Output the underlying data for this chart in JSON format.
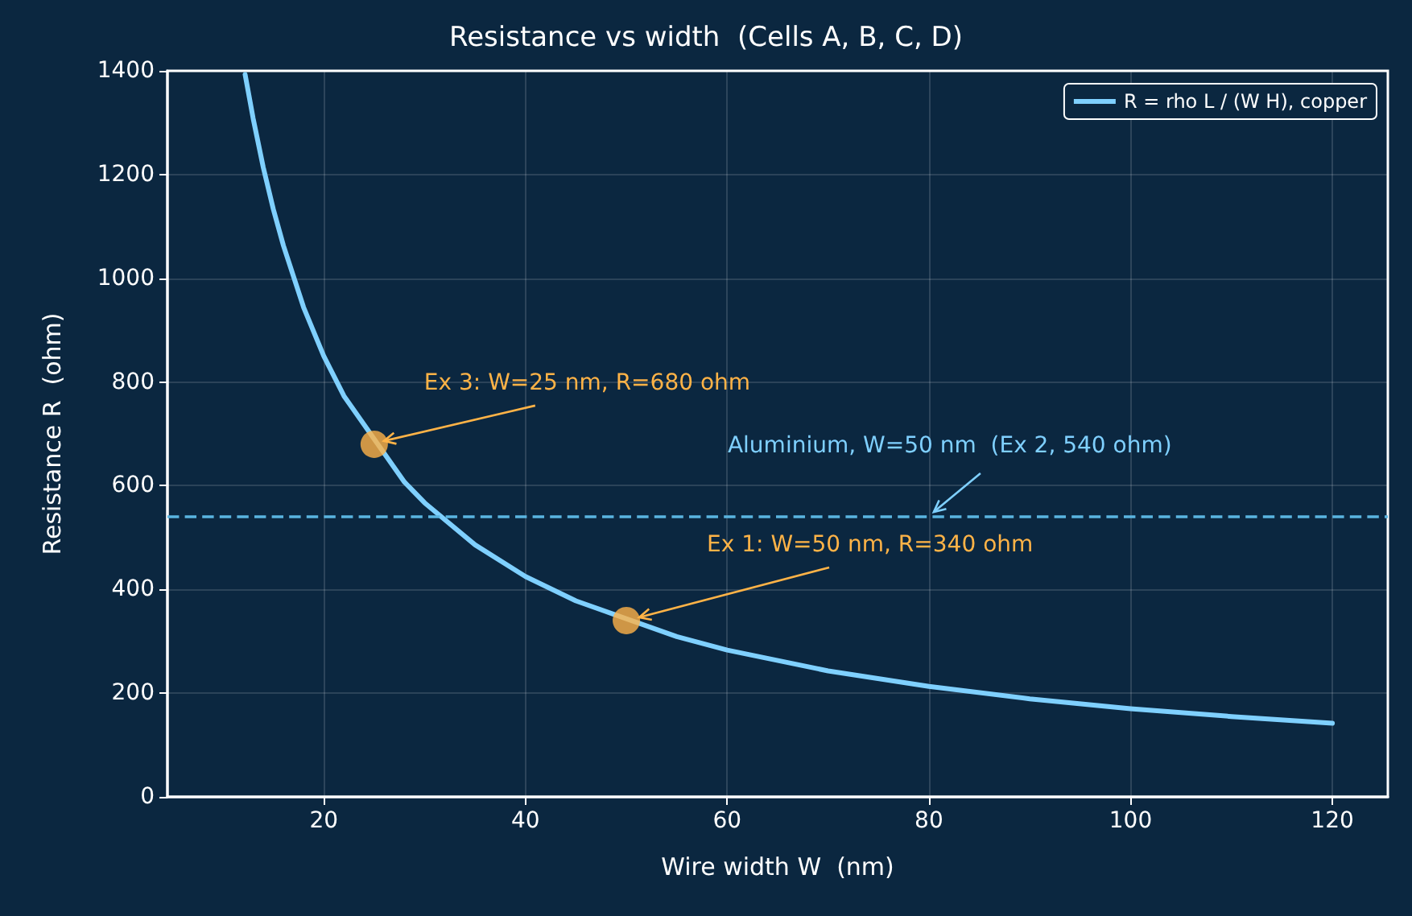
{
  "chart_data": {
    "type": "line",
    "title": "Resistance vs width  (Cells A, B, C, D)",
    "xlabel": "Wire width W  (nm)",
    "ylabel": "Resistance R  (ohm)",
    "series": [
      {
        "name": "R = rho L / (W H), copper",
        "color": "#7fd0ff",
        "x": [
          12.2,
          13,
          14,
          15,
          16,
          18,
          20,
          22,
          28,
          30,
          35,
          40,
          45,
          55,
          60,
          70,
          80,
          90,
          100,
          110,
          120
        ],
        "values": [
          1393,
          1308,
          1214,
          1133,
          1063,
          944,
          850,
          773,
          607,
          567,
          486,
          425,
          378,
          309,
          283,
          243,
          213,
          189,
          170,
          155,
          142
        ],
        "marker": "none"
      },
      {
        "type": "scatter",
        "color": "#ffb347",
        "x": [
          25,
          50
        ],
        "values": [
          680,
          340
        ],
        "marker": "circle"
      }
    ],
    "xlim": [
      4.5,
      125.5
    ],
    "xticks": [
      20,
      40,
      60,
      80,
      100,
      120
    ],
    "ylim": [
      0,
      1400
    ],
    "yticks": [
      0,
      200,
      400,
      600,
      800,
      1000,
      1200,
      1400
    ],
    "grid": true,
    "legend": "top right",
    "ref_lines": [
      {
        "axis": "y",
        "value": 540,
        "color": "#5ab4e0",
        "line_style": "dashed"
      }
    ],
    "annotations": [
      {
        "text": "Ex 3: W=25 nm, R=680 ohm",
        "x": 25,
        "y": 680
      },
      {
        "text": "Aluminium, W=50 nm  (Ex 2, 540 ohm)",
        "x": 80,
        "y": 540
      },
      {
        "text": "Ex 1: W=50 nm, R=340 ohm",
        "x": 50,
        "y": 340
      }
    ]
  }
}
